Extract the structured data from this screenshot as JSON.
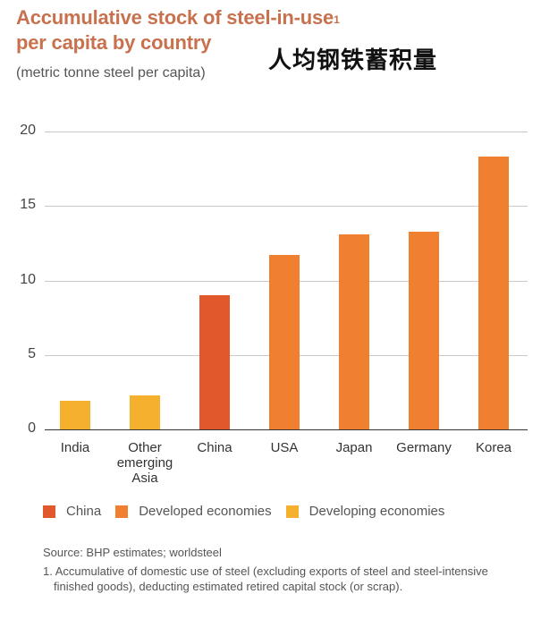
{
  "header": {
    "title_line1": "Accumulative stock of steel-in-use",
    "title_sup": "1",
    "title_line2": "per capita by country",
    "chinese_title": "人均钢铁蓄积量",
    "subtitle": "(metric tonne steel per capita)"
  },
  "colors": {
    "china": "#e0582b",
    "developed": "#f08030",
    "developing": "#f5b12e",
    "title": "#c8714e"
  },
  "chart_data": {
    "type": "bar",
    "title": "Accumulative stock of steel-in-use per capita by country",
    "subtitle": "(metric tonne steel per capita)",
    "xlabel": "",
    "ylabel": "metric tonne steel per capita",
    "ylim": [
      0,
      20
    ],
    "yticks": [
      0,
      5,
      10,
      15,
      20
    ],
    "grid": true,
    "legend_position": "bottom",
    "categories": [
      "India",
      "Other emerging Asia",
      "China",
      "USA",
      "Japan",
      "Germany",
      "Korea"
    ],
    "values": [
      1.9,
      2.3,
      9.0,
      11.7,
      13.1,
      13.3,
      18.3
    ],
    "groups": [
      "Developing economies",
      "Developing economies",
      "China",
      "Developed economies",
      "Developed economies",
      "Developed economies",
      "Developed economies"
    ],
    "legend": [
      "China",
      "Developed economies",
      "Developing economies"
    ]
  },
  "axis": {
    "yticks": [
      "20",
      "15",
      "10",
      "5",
      "0"
    ]
  },
  "bars": [
    {
      "label": "India",
      "value": 1.9,
      "group": "developing"
    },
    {
      "label": "Other\nemerging\nAsia",
      "value": 2.3,
      "group": "developing"
    },
    {
      "label": "China",
      "value": 9.0,
      "group": "china"
    },
    {
      "label": "USA",
      "value": 11.7,
      "group": "developed"
    },
    {
      "label": "Japan",
      "value": 13.1,
      "group": "developed"
    },
    {
      "label": "Germany",
      "value": 13.3,
      "group": "developed"
    },
    {
      "label": "Korea",
      "value": 18.3,
      "group": "developed"
    }
  ],
  "legend": {
    "items": [
      {
        "label": "China",
        "group": "china"
      },
      {
        "label": "Developed economies",
        "group": "developed"
      },
      {
        "label": "Developing economies",
        "group": "developing"
      }
    ]
  },
  "footer": {
    "source": "Source: BHP estimates; worldsteel",
    "footnote": "1. Accumulative of domestic use of steel (excluding exports of steel and steel-intensive finished goods), deducting estimated retired capital stock (or scrap)."
  }
}
